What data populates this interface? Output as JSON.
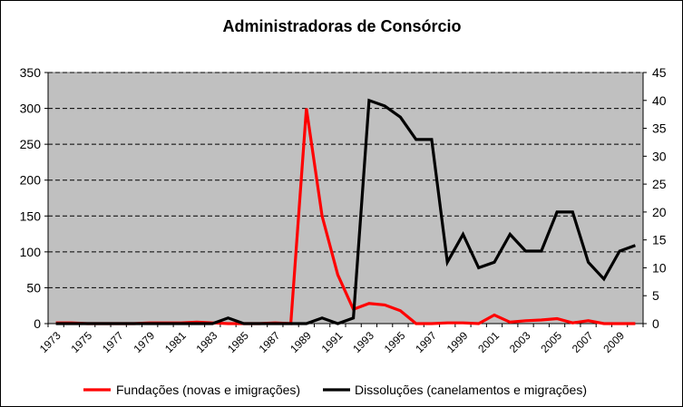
{
  "chart_data": {
    "type": "line",
    "title": "Administradoras de Consórcio",
    "x": [
      1973,
      1974,
      1975,
      1976,
      1977,
      1978,
      1979,
      1980,
      1981,
      1982,
      1983,
      1984,
      1985,
      1986,
      1987,
      1988,
      1989,
      1990,
      1991,
      1992,
      1993,
      1994,
      1995,
      1996,
      1997,
      1998,
      1999,
      2000,
      2001,
      2002,
      2003,
      2004,
      2005,
      2006,
      2007,
      2008,
      2009,
      2010
    ],
    "x_tick_labels": [
      "1973",
      "1975",
      "1977",
      "1979",
      "1981",
      "1983",
      "1985",
      "1987",
      "1989",
      "1991",
      "1993",
      "1995",
      "1997",
      "1999",
      "2001",
      "2003",
      "2005",
      "2007",
      "2009"
    ],
    "ylim_left": [
      0,
      350
    ],
    "y_ticks_left": [
      0,
      50,
      100,
      150,
      200,
      250,
      300,
      350
    ],
    "ylim_right": [
      0,
      45
    ],
    "y_ticks_right": [
      0,
      5,
      10,
      15,
      20,
      25,
      30,
      35,
      40,
      45
    ],
    "grid": "horizontal dashed",
    "plot_background": "#c0c0c0",
    "legend_placement": "bottom",
    "series": [
      {
        "name": "Fundações (novas e imigrações)",
        "axis": "left",
        "color": "#ff0000",
        "values": [
          1,
          1,
          0,
          0,
          0,
          0,
          1,
          1,
          1,
          2,
          1,
          0,
          0,
          0,
          1,
          0,
          300,
          150,
          68,
          20,
          28,
          26,
          18,
          0,
          0,
          1,
          1,
          0,
          12,
          2,
          4,
          5,
          7,
          1,
          4,
          0,
          0,
          0
        ]
      },
      {
        "name": "Dissoluções (canelamentos e migrações)",
        "axis": "right",
        "color": "#000000",
        "values": [
          0,
          0,
          0,
          0,
          0,
          0,
          0,
          0,
          0,
          0,
          0,
          1,
          0,
          0,
          0,
          0,
          0,
          1,
          0,
          1,
          40,
          39,
          37,
          33,
          33,
          11,
          16,
          10,
          11,
          16,
          13,
          13,
          20,
          20,
          11,
          8,
          13,
          14
        ]
      }
    ]
  }
}
